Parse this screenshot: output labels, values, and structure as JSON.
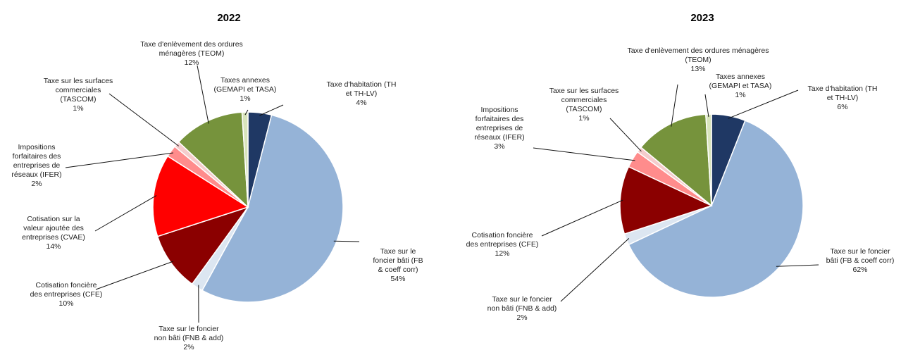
{
  "chart_data": [
    {
      "type": "pie",
      "title": "2022",
      "series": [
        {
          "key": "th",
          "value": 4,
          "color": "#1f3864",
          "label_lines": [
            "Taxe d'habitation (TH",
            "et TH-LV)",
            "4%"
          ]
        },
        {
          "key": "fb",
          "value": 54,
          "color": "#95b3d7",
          "label_lines": [
            "Taxe sur le",
            "foncier bâti (FB",
            "& coeff corr)",
            "54%"
          ]
        },
        {
          "key": "fnb",
          "value": 2,
          "color": "#dce6f1",
          "label_lines": [
            "Taxe sur le foncier",
            "non bâti (FNB & add)",
            "2%"
          ]
        },
        {
          "key": "cfe",
          "value": 10,
          "color": "#8b0000",
          "label_lines": [
            "Cotisation foncière",
            "des entreprises (CFE)",
            "10%"
          ]
        },
        {
          "key": "cvae",
          "value": 14,
          "color": "#ff0000",
          "label_lines": [
            "Cotisation sur la",
            "valeur ajoutée des",
            "entreprises (CVAE)",
            "14%"
          ]
        },
        {
          "key": "ifer",
          "value": 2,
          "color": "#ff8c8c",
          "label_lines": [
            "Impositions",
            "forfaitaires des",
            "entreprises de",
            "réseaux (IFER)",
            "2%"
          ]
        },
        {
          "key": "tascom",
          "value": 1,
          "color": "#f5cccc",
          "label_lines": [
            "Taxe sur les surfaces",
            "commerciales",
            "(TASCOM)",
            "1%"
          ]
        },
        {
          "key": "teom",
          "value": 12,
          "color": "#76933c",
          "label_lines": [
            "Taxe d'enlèvement des ordures",
            "ménagères (TEOM)",
            "12%"
          ]
        },
        {
          "key": "annexes",
          "value": 1,
          "color": "#d8e4bc",
          "label_lines": [
            "Taxes annexes",
            "(GEMAPI et TASA)",
            "1%"
          ]
        }
      ]
    },
    {
      "type": "pie",
      "title": "2023",
      "series": [
        {
          "key": "th",
          "value": 6,
          "color": "#1f3864",
          "label_lines": [
            "Taxe d'habitation (TH",
            "et TH-LV)",
            "6%"
          ]
        },
        {
          "key": "fb",
          "value": 62,
          "color": "#95b3d7",
          "label_lines": [
            "Taxe sur le foncier",
            "bâti (FB & coeff corr)",
            "62%"
          ]
        },
        {
          "key": "fnb",
          "value": 2,
          "color": "#dce6f1",
          "label_lines": [
            "Taxe sur le foncier",
            "non bâti (FNB & add)",
            "2%"
          ]
        },
        {
          "key": "cfe",
          "value": 12,
          "color": "#8b0000",
          "label_lines": [
            "Cotisation foncière",
            "des entreprises (CFE)",
            "12%"
          ]
        },
        {
          "key": "ifer",
          "value": 3,
          "color": "#ff8c8c",
          "label_lines": [
            "Impositions",
            "forfaitaires des",
            "entreprises de",
            "réseaux (IFER)",
            "3%"
          ]
        },
        {
          "key": "tascom",
          "value": 1,
          "color": "#f5cccc",
          "label_lines": [
            "Taxe sur les surfaces",
            "commerciales",
            "(TASCOM)",
            "1%"
          ]
        },
        {
          "key": "teom",
          "value": 13,
          "color": "#76933c",
          "label_lines": [
            "Taxe d'enlèvement des ordures ménagères",
            "(TEOM)",
            "13%"
          ]
        },
        {
          "key": "annexes",
          "value": 1,
          "color": "#d8e4bc",
          "label_lines": [
            "Taxes annexes",
            "(GEMAPI et TASA)",
            "1%"
          ]
        }
      ]
    }
  ]
}
